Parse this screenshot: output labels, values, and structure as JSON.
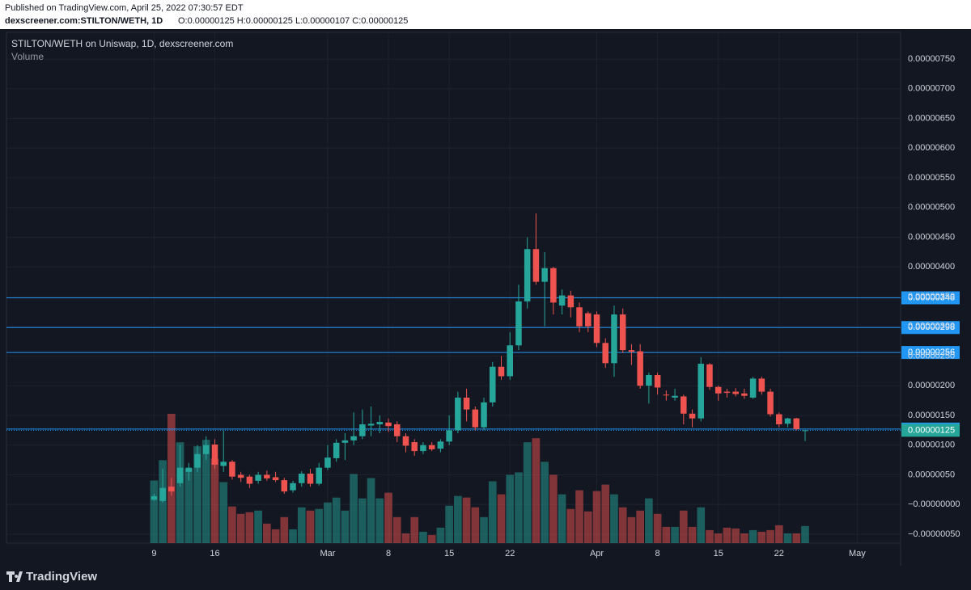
{
  "header": {
    "published": "Published on TradingView.com, April 25, 2022 07:30:57 EDT",
    "symbol": "dexscreener.com:STILTON/WETH, 1D",
    "ohlc": "O:0.00000125 H:0.00000125 L:0.00000107 C:0.00000125"
  },
  "footer": {
    "brand": "TradingView"
  },
  "chart_data": {
    "type": "candlestick",
    "title": "STILTON/WETH on Uniswap, 1D, dexscreener.com",
    "volume_label": "Volume",
    "up_color": "#26a69a",
    "down_color": "#ef5350",
    "grid": true,
    "dates": [
      "02-09",
      "02-10",
      "02-11",
      "02-12",
      "02-13",
      "02-14",
      "02-15",
      "02-16",
      "02-17",
      "02-18",
      "02-19",
      "02-20",
      "02-21",
      "02-22",
      "02-23",
      "02-24",
      "02-25",
      "02-26",
      "02-27",
      "02-28",
      "03-01",
      "03-02",
      "03-03",
      "03-04",
      "03-05",
      "03-06",
      "03-07",
      "03-08",
      "03-09",
      "03-10",
      "03-11",
      "03-12",
      "03-13",
      "03-14",
      "03-15",
      "03-16",
      "03-17",
      "03-18",
      "03-19",
      "03-20",
      "03-21",
      "03-22",
      "03-23",
      "03-24",
      "03-25",
      "03-26",
      "03-27",
      "03-28",
      "03-29",
      "03-30",
      "03-31",
      "04-01",
      "04-02",
      "04-03",
      "04-04",
      "04-05",
      "04-06",
      "04-07",
      "04-08",
      "04-09",
      "04-10",
      "04-11",
      "04-12",
      "04-13",
      "04-14",
      "04-15",
      "04-16",
      "04-17",
      "04-18",
      "04-19",
      "04-20",
      "04-21",
      "04-22",
      "04-23",
      "04-24",
      "04-25"
    ],
    "open": [
      8e-09,
      6e-09,
      3e-08,
      3.6e-08,
      5.5e-08,
      6.2e-08,
      8.5e-08,
      1.01e-07,
      6.5e-08,
      7.2e-08,
      5e-08,
      4.7e-08,
      4e-08,
      5e-08,
      4.6e-08,
      4.1e-08,
      2.4e-08,
      3.6e-08,
      5.2e-08,
      3.5e-08,
      6.2e-08,
      7.8e-08,
      1.04e-07,
      1.08e-07,
      1.15e-07,
      1.33e-07,
      1.35e-07,
      1.38e-07,
      1.35e-07,
      1.15e-07,
      1.05e-07,
      9e-08,
      1e-07,
      9.4e-08,
      1.06e-07,
      1.25e-07,
      1.8e-07,
      1.6e-07,
      1.3e-07,
      1.72e-07,
      2.32e-07,
      2.16e-07,
      2.68e-07,
      3.42e-07,
      4.3e-07,
      3.75e-07,
      3.98e-07,
      3.35e-07,
      3.52e-07,
      3.32e-07,
      3.22e-07,
      3.2e-07,
      2.72e-07,
      2.38e-07,
      3.2e-07,
      2.6e-07,
      2.58e-07,
      2e-07,
      2.18e-07,
      1.85e-07,
      1.8e-07,
      1.82e-07,
      1.53e-07,
      1.45e-07,
      2.36e-07,
      1.98e-07,
      1.9e-07,
      1.9e-07,
      1.87e-07,
      1.8e-07,
      2.12e-07,
      1.9e-07,
      1.52e-07,
      1.36e-07,
      1.45e-07,
      1.25e-07
    ],
    "high": [
      1.8e-08,
      6e-08,
      4.5e-08,
      1e-07,
      7e-08,
      1e-07,
      1.15e-07,
      1.1e-07,
      1.25e-07,
      7.5e-08,
      5.5e-08,
      5e-08,
      5.5e-08,
      5.7e-08,
      5.5e-08,
      4.5e-08,
      4e-08,
      5.6e-08,
      6e-08,
      7e-08,
      1e-07,
      1.1e-07,
      1.2e-07,
      1.55e-07,
      1.6e-07,
      1.65e-07,
      1.5e-07,
      1.45e-07,
      1.4e-07,
      1.2e-07,
      1.1e-07,
      1.05e-07,
      1.05e-07,
      1.1e-07,
      1.5e-07,
      1.9e-07,
      1.95e-07,
      1.65e-07,
      1.8e-07,
      2.4e-07,
      2.5e-07,
      2.9e-07,
      3.7e-07,
      4.5e-07,
      4.9e-07,
      4.25e-07,
      4e-07,
      3.62e-07,
      3.6e-07,
      3.4e-07,
      3.25e-07,
      3.25e-07,
      2.8e-07,
      3.35e-07,
      3.3e-07,
      2.7e-07,
      2.7e-07,
      2.22e-07,
      2.22e-07,
      1.92e-07,
      1.95e-07,
      1.85e-07,
      1.6e-07,
      2.48e-07,
      2.38e-07,
      2e-07,
      1.95e-07,
      1.96e-07,
      1.95e-07,
      2.15e-07,
      2.15e-07,
      1.95e-07,
      1.55e-07,
      1.46e-07,
      1.46e-07,
      1.25e-07
    ],
    "low": [
      6e-09,
      3e-09,
      1.5e-08,
      3e-08,
      4e-08,
      5.5e-08,
      7.5e-08,
      6e-08,
      5.5e-08,
      4.2e-08,
      3.8e-08,
      2.8e-08,
      3.5e-08,
      4e-08,
      3.8e-08,
      1.8e-08,
      2e-08,
      3e-08,
      3e-08,
      3.2e-08,
      5.8e-08,
      7.2e-08,
      7.5e-08,
      1e-07,
      1.1e-07,
      1.15e-07,
      1.2e-07,
      1.22e-07,
      1.05e-07,
      8.8e-08,
      8.2e-08,
      8.5e-08,
      9e-08,
      8.8e-08,
      1e-07,
      1.2e-07,
      1.4e-07,
      1.25e-07,
      1.25e-07,
      1.65e-07,
      2.1e-07,
      2.1e-07,
      2.6e-07,
      3.3e-07,
      3.7e-07,
      3e-07,
      3.2e-07,
      3.2e-07,
      3.15e-07,
      2.9e-07,
      2.9e-07,
      2.65e-07,
      2.3e-07,
      2.15e-07,
      2.55e-07,
      2.35e-07,
      1.95e-07,
      1.7e-07,
      1.85e-07,
      1.75e-07,
      1.75e-07,
      1.35e-07,
      1.3e-07,
      1.4e-07,
      1.93e-07,
      1.75e-07,
      1.8e-07,
      1.82e-07,
      1.78e-07,
      1.78e-07,
      1.85e-07,
      1.48e-07,
      1.3e-07,
      1.3e-07,
      1.25e-07,
      1.07e-07
    ],
    "close": [
      1.4e-08,
      2.8e-08,
      2.2e-08,
      6.2e-08,
      6.2e-08,
      8.5e-08,
      1e-07,
      6.7e-08,
      7.2e-08,
      4.7e-08,
      4.5e-08,
      3.5e-08,
      5e-08,
      4.4e-08,
      4.1e-08,
      2.2e-08,
      3.6e-08,
      5.2e-08,
      3.5e-08,
      6.2e-08,
      7.9e-08,
      1.04e-07,
      1.08e-07,
      1.15e-07,
      1.35e-07,
      1.36e-07,
      1.39e-07,
      1.32e-07,
      1.15e-07,
      9.9e-08,
      9e-08,
      1e-07,
      9.3e-08,
      1.06e-07,
      1.25e-07,
      1.8e-07,
      1.6e-07,
      1.3e-07,
      1.72e-07,
      2.32e-07,
      2.16e-07,
      2.68e-07,
      3.42e-07,
      4.3e-07,
      3.75e-07,
      3.98e-07,
      3.4e-07,
      3.52e-07,
      3.32e-07,
      3e-07,
      3e-07,
      2.72e-07,
      2.38e-07,
      3.2e-07,
      2.6e-07,
      2.57e-07,
      2e-07,
      2.18e-07,
      1.97e-07,
      1.84e-07,
      1.83e-07,
      1.53e-07,
      1.45e-07,
      2.37e-07,
      1.98e-07,
      1.87e-07,
      1.88e-07,
      1.86e-07,
      1.83e-07,
      2.12e-07,
      1.9e-07,
      1.52e-07,
      1.35e-07,
      1.45e-07,
      1.27e-07,
      1.25e-07
    ],
    "volume": [
      77,
      102,
      159,
      124,
      92,
      119,
      127,
      104,
      75,
      45,
      36,
      38,
      40,
      24,
      17,
      32,
      17,
      44,
      40,
      42,
      50,
      56,
      40,
      85,
      55,
      80,
      55,
      62,
      32,
      12,
      32,
      14,
      10,
      19,
      46,
      58,
      56,
      44,
      32,
      76,
      60,
      84,
      87,
      124,
      129,
      100,
      84,
      60,
      42,
      65,
      39,
      64,
      72,
      60,
      44,
      32,
      40,
      55,
      36,
      20,
      20,
      40,
      20,
      44,
      16,
      12,
      19,
      18,
      12,
      16,
      14,
      16,
      22,
      12,
      12,
      21
    ],
    "xlim": [
      "01-23",
      "05-06"
    ],
    "xticks": [
      {
        "value": "02-09",
        "label": "9"
      },
      {
        "value": "02-16",
        "label": "16"
      },
      {
        "value": "03-01",
        "label": "Mar"
      },
      {
        "value": "03-08",
        "label": "8"
      },
      {
        "value": "03-15",
        "label": "15"
      },
      {
        "value": "03-22",
        "label": "22"
      },
      {
        "value": "04-01",
        "label": "Apr"
      },
      {
        "value": "04-08",
        "label": "8"
      },
      {
        "value": "04-15",
        "label": "15"
      },
      {
        "value": "04-22",
        "label": "22"
      },
      {
        "value": "05-01",
        "label": "May"
      }
    ],
    "ylim": [
      -6.5e-08,
      7.95e-07
    ],
    "yticks": [
      {
        "value": -5e-08,
        "label": "−0.00000050"
      },
      {
        "value": 0,
        "label": "−0.00000000"
      },
      {
        "value": 5e-08,
        "label": "0.00000050"
      },
      {
        "value": 1e-07,
        "label": "0.00000100"
      },
      {
        "value": 1.5e-07,
        "label": "0.00000150"
      },
      {
        "value": 2e-07,
        "label": "0.00000200"
      },
      {
        "value": 2.5e-07,
        "label": "0.00000250"
      },
      {
        "value": 3e-07,
        "label": "0.00000300"
      },
      {
        "value": 3.5e-07,
        "label": "0.00000350"
      },
      {
        "value": 4e-07,
        "label": "0.00000400"
      },
      {
        "value": 4.5e-07,
        "label": "0.00000450"
      },
      {
        "value": 5e-07,
        "label": "0.00000500"
      },
      {
        "value": 5.5e-07,
        "label": "0.00000550"
      },
      {
        "value": 6e-07,
        "label": "0.00000600"
      },
      {
        "value": 6.5e-07,
        "label": "0.00000650"
      },
      {
        "value": 7e-07,
        "label": "0.00000700"
      },
      {
        "value": 7.5e-07,
        "label": "0.00000750"
      }
    ],
    "levels": [
      {
        "value": 3.48e-07,
        "label": "0.00000348"
      },
      {
        "value": 2.98e-07,
        "label": "0.00000298"
      },
      {
        "value": 2.56e-07,
        "label": "0.00000256"
      },
      {
        "value": 1.27e-07,
        "label": "0.00000127"
      }
    ],
    "level_color": "#2196f3",
    "last_price": {
      "value": 1.25e-07,
      "label": "0.00000125",
      "color": "#26a69a"
    }
  }
}
